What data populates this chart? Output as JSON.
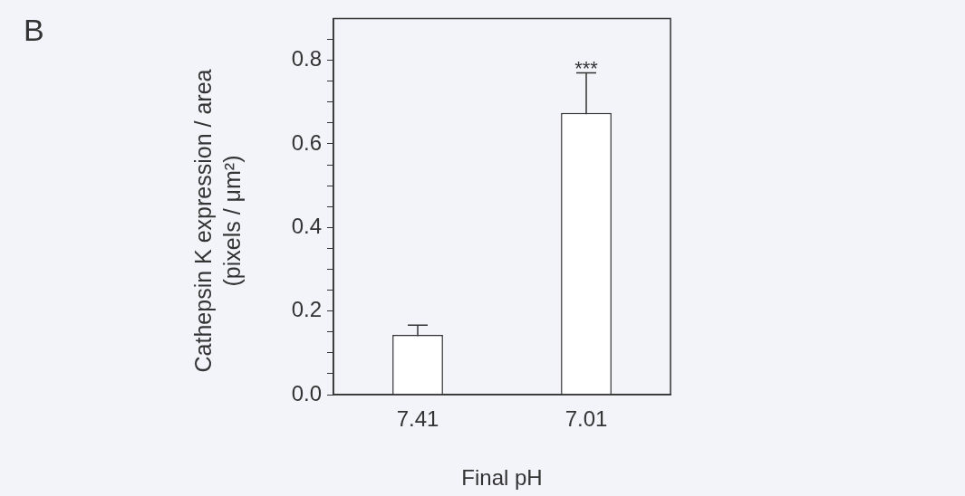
{
  "chart_data": {
    "type": "bar",
    "annotations": [
      "B",
      {
        "text": "***",
        "x": "7.01",
        "y": 0.77
      }
    ],
    "xlabel": "Final pH",
    "ylabel": "Cathepsin K expression / area (pixels / μm²)",
    "categories": [
      "7.41",
      "7.01"
    ],
    "values": [
      0.143,
      0.674
    ],
    "errors": [
      0.023,
      0.096
    ],
    "color": "#ffffff",
    "ylim": [
      0,
      0.9
    ],
    "yticks": [
      {
        "value": 0,
        "label": "0.0"
      },
      {
        "value": 0.05,
        "label": null
      },
      {
        "value": 0.1,
        "label": null
      },
      {
        "value": 0.15,
        "label": null
      },
      {
        "value": 0.2,
        "label": "0.2"
      },
      {
        "value": 0.25,
        "label": null
      },
      {
        "value": 0.3,
        "label": null
      },
      {
        "value": 0.35,
        "label": null
      },
      {
        "value": 0.4,
        "label": "0.4"
      },
      {
        "value": 0.45,
        "label": null
      },
      {
        "value": 0.5,
        "label": null
      },
      {
        "value": 0.55,
        "label": null
      },
      {
        "value": 0.6,
        "label": "0.6"
      },
      {
        "value": 0.65,
        "label": null
      },
      {
        "value": 0.7,
        "label": null
      },
      {
        "value": 0.75,
        "label": null
      },
      {
        "value": 0.8,
        "label": "0.8"
      },
      {
        "value": 0.85,
        "label": null
      }
    ],
    "grid": false,
    "legend": false
  }
}
